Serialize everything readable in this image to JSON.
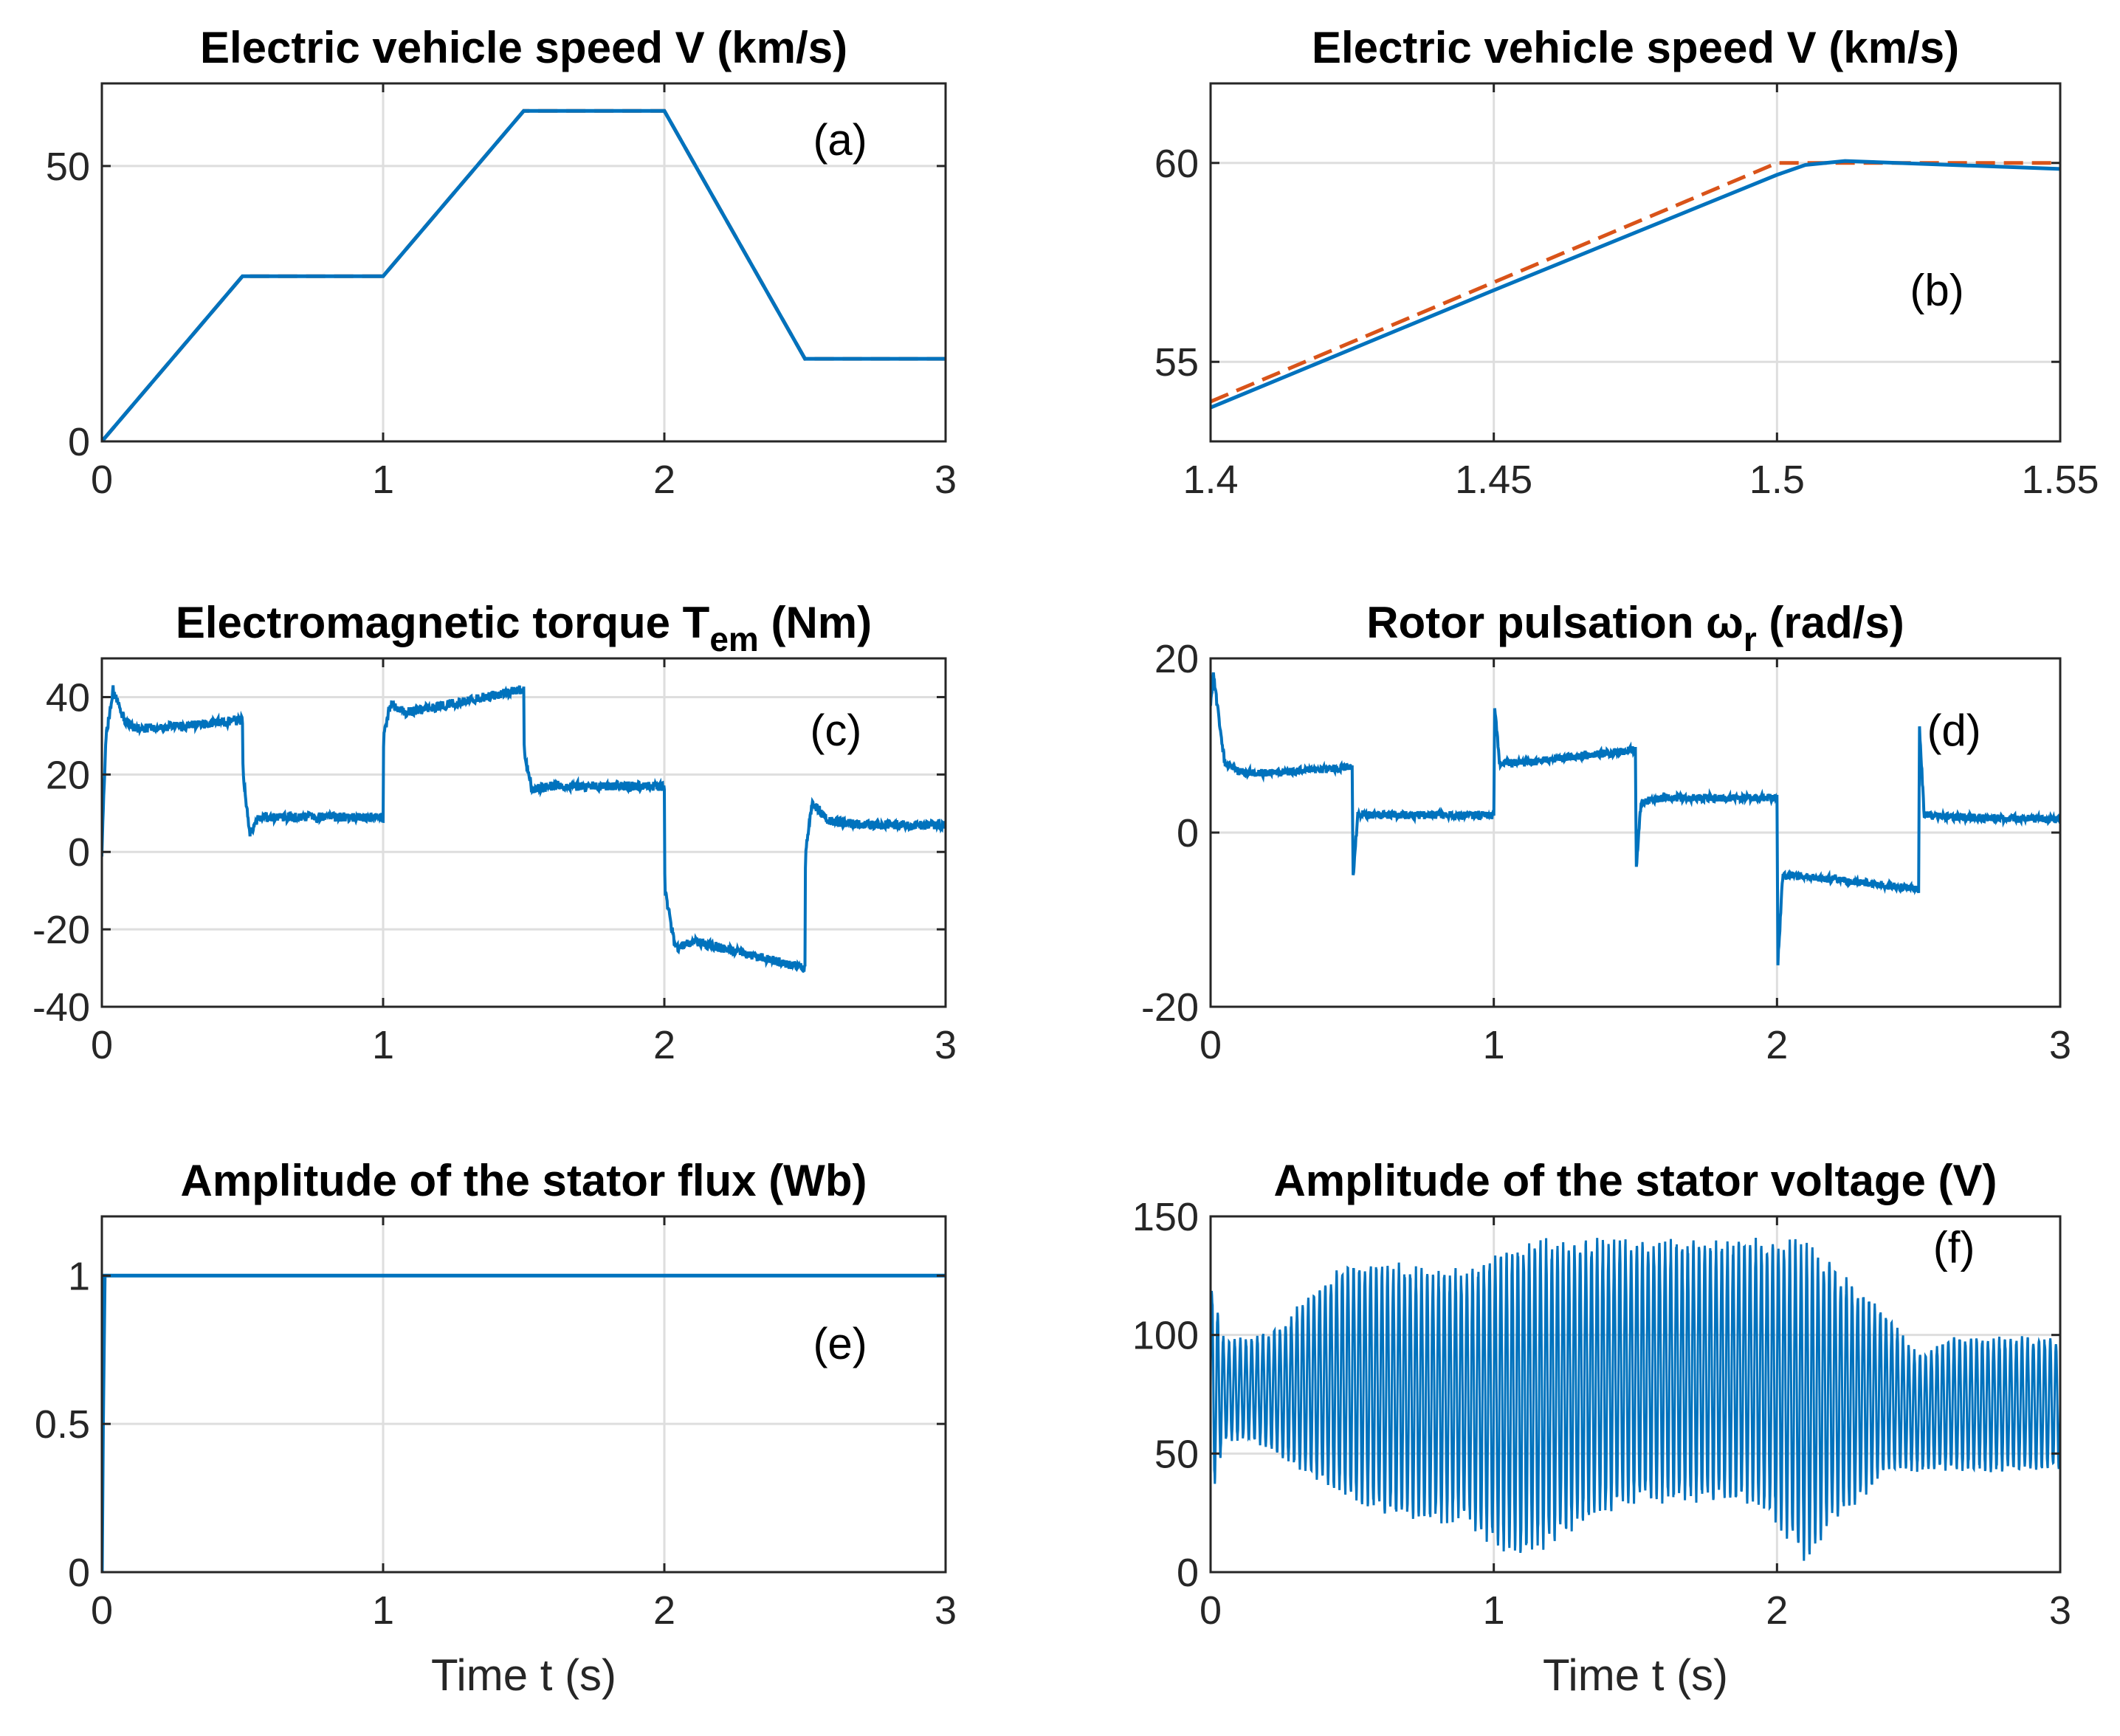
{
  "colors": {
    "blue": "#0072BD",
    "orange": "#D95319",
    "grid": "#DEDEDE",
    "axis": "#262626"
  },
  "chart_data": [
    {
      "id": "a",
      "type": "line",
      "title": "Electric vehicle speed V (km/s)",
      "panel_label": "(a)",
      "xlabel": "",
      "ylabel": "",
      "xlim": [
        0,
        3
      ],
      "ylim": [
        0,
        65
      ],
      "xticks": [
        0,
        1,
        2,
        3
      ],
      "xtick_labels": [
        "0",
        "1",
        "2",
        "3"
      ],
      "yticks": [
        0,
        50
      ],
      "ytick_labels": [
        "0",
        "50"
      ],
      "grid": true,
      "series": [
        {
          "name": "reference speed",
          "color": "orange",
          "dash": "dashed",
          "x": [
            0,
            0.5,
            1,
            1.5,
            2,
            2.5,
            3
          ],
          "y": [
            0,
            30,
            30,
            60,
            60,
            15,
            15
          ]
        },
        {
          "name": "measured speed",
          "color": "blue",
          "dash": "solid",
          "x": [
            0,
            0.5,
            1,
            1.5,
            2,
            2.5,
            3
          ],
          "y": [
            0,
            30,
            30,
            60,
            60,
            15,
            15
          ]
        }
      ]
    },
    {
      "id": "b",
      "type": "line",
      "title": "Electric vehicle speed V (km/s)",
      "panel_label": "(b)",
      "xlabel": "",
      "ylabel": "",
      "xlim": [
        1.4,
        1.55
      ],
      "ylim": [
        53,
        62
      ],
      "xticks": [
        1.4,
        1.45,
        1.5,
        1.55
      ],
      "xtick_labels": [
        "1.4",
        "1.45",
        "1.5",
        "1.55"
      ],
      "yticks": [
        55,
        60
      ],
      "ytick_labels": [
        "55",
        "60"
      ],
      "grid": true,
      "series": [
        {
          "name": "reference speed",
          "color": "orange",
          "dash": "dashed",
          "x": [
            1.4,
            1.5,
            1.55
          ],
          "y": [
            54,
            60,
            60
          ]
        },
        {
          "name": "measured speed",
          "color": "blue",
          "dash": "solid",
          "x": [
            1.4,
            1.45,
            1.5,
            1.505,
            1.512,
            1.55
          ],
          "y": [
            53.85,
            56.8,
            59.7,
            59.95,
            60.05,
            59.85
          ]
        }
      ]
    },
    {
      "id": "c",
      "type": "line",
      "title": "Electromagnetic torque T",
      "title_sub": "em",
      "title_tail": " (Nm)",
      "panel_label": "(c)",
      "xlabel": "",
      "ylabel": "",
      "xlim": [
        0,
        3
      ],
      "ylim": [
        -40,
        50
      ],
      "xticks": [
        0,
        1,
        2,
        3
      ],
      "xtick_labels": [
        "0",
        "1",
        "2",
        "3"
      ],
      "yticks": [
        -40,
        -20,
        0,
        20,
        40
      ],
      "ytick_labels": [
        "-40",
        "-20",
        "0",
        "20",
        "40"
      ],
      "grid": true,
      "series": [
        {
          "name": "Tem",
          "color": "blue",
          "dash": "solid",
          "noise": 1.2,
          "x": [
            0,
            0.015,
            0.04,
            0.08,
            0.12,
            0.2,
            0.5,
            0.502,
            0.525,
            0.56,
            0.6,
            1.0,
            1.002,
            1.025,
            1.08,
            1.5,
            1.502,
            1.53,
            1.6,
            2.0,
            2.002,
            2.04,
            2.1,
            2.5,
            2.502,
            2.525,
            2.58,
            2.7,
            3.0
          ],
          "y": [
            0,
            30,
            42,
            34,
            32,
            32,
            34,
            20,
            5,
            9,
            9,
            9,
            30,
            38,
            36,
            42,
            25,
            16,
            17,
            17,
            -10,
            -25,
            -23,
            -30,
            0,
            13,
            8,
            7,
            7
          ]
        }
      ]
    },
    {
      "id": "d",
      "type": "line",
      "title": "Rotor pulsation ω",
      "title_sub": "r",
      "title_tail": " (rad/s)",
      "panel_label": "(d)",
      "xlabel": "",
      "ylabel": "",
      "xlim": [
        0,
        3
      ],
      "ylim": [
        -20,
        20
      ],
      "xticks": [
        0,
        1,
        2,
        3
      ],
      "xtick_labels": [
        "0",
        "1",
        "2",
        "3"
      ],
      "yticks": [
        -20,
        0,
        20
      ],
      "ytick_labels": [
        "-20",
        "0",
        "20"
      ],
      "grid": true,
      "series": [
        {
          "name": "omega_r",
          "color": "blue",
          "dash": "solid",
          "noise": 0.45,
          "x": [
            0,
            0.01,
            0.05,
            0.1,
            0.2,
            0.5,
            0.503,
            0.52,
            0.6,
            1.0,
            1.003,
            1.02,
            1.1,
            1.5,
            1.503,
            1.52,
            1.6,
            2.0,
            2.003,
            2.02,
            2.1,
            2.5,
            2.503,
            2.52,
            2.6,
            3.0
          ],
          "y": [
            15,
            18,
            8,
            7,
            6.8,
            7.5,
            -5,
            2,
            2,
            2,
            14.5,
            8,
            8,
            9.5,
            -4,
            3.5,
            4,
            4,
            -15,
            -5,
            -5,
            -6.5,
            12,
            2,
            1.8,
            1.5
          ]
        }
      ]
    },
    {
      "id": "e",
      "type": "line",
      "title": "Amplitude of the stator flux (Wb)",
      "panel_label": "(e)",
      "xlabel": "Time t (s)",
      "ylabel": "",
      "xlim": [
        0,
        3
      ],
      "ylim": [
        0,
        1.2
      ],
      "xticks": [
        0,
        1,
        2,
        3
      ],
      "xtick_labels": [
        "0",
        "1",
        "2",
        "3"
      ],
      "yticks": [
        0,
        0.5,
        1
      ],
      "ytick_labels": [
        "0",
        "0.5",
        "1"
      ],
      "grid": true,
      "series": [
        {
          "name": "stator flux amplitude",
          "color": "blue",
          "dash": "solid",
          "x": [
            0,
            0.004,
            0.01,
            3.0
          ],
          "y": [
            0,
            0.5,
            1,
            1
          ]
        }
      ]
    },
    {
      "id": "f",
      "type": "line",
      "title": "Amplitude of the stator voltage (V)",
      "panel_label": "(f)",
      "xlabel": "Time t (s)",
      "ylabel": "",
      "xlim": [
        0,
        3
      ],
      "ylim": [
        0,
        150
      ],
      "xticks": [
        0,
        1,
        2,
        3
      ],
      "xtick_labels": [
        "0",
        "1",
        "2",
        "3"
      ],
      "yticks": [
        0,
        50,
        100,
        150
      ],
      "ytick_labels": [
        "0",
        "50",
        "100",
        "150"
      ],
      "grid": true,
      "series": [
        {
          "name": "stator voltage amplitude",
          "color": "blue",
          "dash": "solid",
          "oscillating": true,
          "period": 0.02,
          "x": [
            0,
            0.05,
            0.15,
            0.25,
            0.35,
            0.5,
            0.7,
            0.9,
            1.0,
            1.1,
            1.3,
            1.5,
            1.7,
            1.9,
            2.0,
            2.1,
            2.2,
            2.4,
            2.5,
            2.6,
            2.8,
            3.0
          ],
          "upper": [
            125,
            98,
            100,
            105,
            118,
            133,
            130,
            128,
            135,
            141,
            141,
            141,
            141,
            141,
            141,
            141,
            130,
            108,
            92,
            100,
            100,
            100
          ],
          "lower": [
            28,
            55,
            55,
            48,
            40,
            28,
            20,
            20,
            10,
            3,
            18,
            28,
            28,
            28,
            20,
            3,
            20,
            42,
            42,
            42,
            42,
            42
          ]
        }
      ]
    }
  ]
}
